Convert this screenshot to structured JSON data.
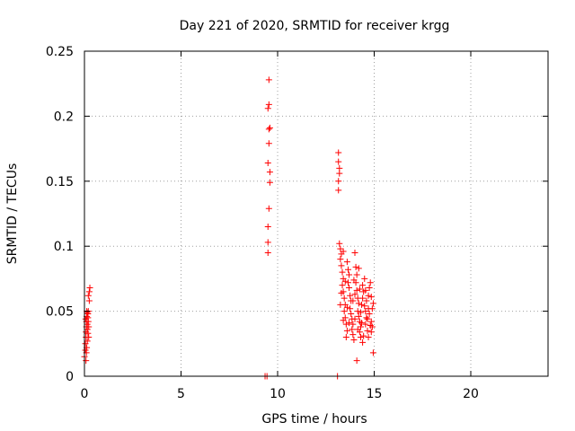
{
  "chart_data": {
    "type": "scatter",
    "title": "Day 221 of 2020, SRMTID for receiver krgg",
    "xlabel": "GPS time / hours",
    "ylabel": "SRMTID / TECUs",
    "xlim": [
      0,
      24
    ],
    "ylim": [
      0,
      0.25
    ],
    "xticks": [
      0,
      5,
      10,
      15,
      20
    ],
    "xtick_labels": [
      "0",
      "5",
      "10",
      "15",
      "20"
    ],
    "yticks": [
      0,
      0.05,
      0.1,
      0.15,
      0.2,
      0.25
    ],
    "ytick_labels": [
      "0",
      "0.05",
      "0.1",
      "0.15",
      "0.2",
      "0.25"
    ],
    "grid": true,
    "marker": "+",
    "color": "#ff0000",
    "series": [
      {
        "name": "SRMTID",
        "points": [
          [
            0.0,
            0.015
          ],
          [
            0.05,
            0.02
          ],
          [
            0.05,
            0.025
          ],
          [
            0.08,
            0.03
          ],
          [
            0.08,
            0.034
          ],
          [
            0.1,
            0.038
          ],
          [
            0.1,
            0.042
          ],
          [
            0.12,
            0.046
          ],
          [
            0.12,
            0.05
          ],
          [
            0.06,
            0.044
          ],
          [
            0.15,
            0.036
          ],
          [
            0.15,
            0.04
          ],
          [
            0.18,
            0.045
          ],
          [
            0.18,
            0.048
          ],
          [
            0.2,
            0.05
          ],
          [
            0.2,
            0.042
          ],
          [
            0.22,
            0.038
          ],
          [
            0.1,
            0.018
          ],
          [
            0.12,
            0.022
          ],
          [
            0.15,
            0.027
          ],
          [
            0.25,
            0.058
          ],
          [
            0.25,
            0.065
          ],
          [
            0.28,
            0.068
          ],
          [
            0.2,
            0.062
          ],
          [
            0.08,
            0.012
          ],
          [
            0.22,
            0.03
          ],
          [
            0.18,
            0.033
          ],
          [
            0.14,
            0.049
          ],
          [
            9.35,
            0.0
          ],
          [
            9.45,
            0.0
          ],
          [
            9.5,
            0.095
          ],
          [
            9.5,
            0.103
          ],
          [
            9.5,
            0.115
          ],
          [
            9.55,
            0.129
          ],
          [
            9.6,
            0.149
          ],
          [
            9.6,
            0.157
          ],
          [
            9.5,
            0.164
          ],
          [
            9.55,
            0.179
          ],
          [
            9.55,
            0.19
          ],
          [
            9.6,
            0.191
          ],
          [
            9.5,
            0.206
          ],
          [
            9.55,
            0.209
          ],
          [
            9.55,
            0.228
          ],
          [
            13.1,
            0.0
          ],
          [
            13.15,
            0.143
          ],
          [
            13.15,
            0.15
          ],
          [
            13.2,
            0.156
          ],
          [
            13.2,
            0.16
          ],
          [
            13.15,
            0.165
          ],
          [
            13.15,
            0.172
          ],
          [
            13.2,
            0.102
          ],
          [
            13.25,
            0.098
          ],
          [
            13.3,
            0.094
          ],
          [
            13.25,
            0.09
          ],
          [
            13.3,
            0.085
          ],
          [
            13.35,
            0.08
          ],
          [
            13.4,
            0.075
          ],
          [
            13.35,
            0.07
          ],
          [
            13.4,
            0.065
          ],
          [
            13.45,
            0.06
          ],
          [
            13.5,
            0.055
          ],
          [
            13.45,
            0.05
          ],
          [
            13.5,
            0.045
          ],
          [
            13.55,
            0.04
          ],
          [
            13.6,
            0.035
          ],
          [
            13.55,
            0.03
          ],
          [
            13.6,
            0.088
          ],
          [
            13.65,
            0.082
          ],
          [
            13.7,
            0.078
          ],
          [
            13.65,
            0.072
          ],
          [
            13.7,
            0.068
          ],
          [
            13.75,
            0.062
          ],
          [
            13.8,
            0.058
          ],
          [
            13.75,
            0.052
          ],
          [
            13.8,
            0.048
          ],
          [
            13.85,
            0.044
          ],
          [
            13.9,
            0.04
          ],
          [
            13.85,
            0.036
          ],
          [
            13.9,
            0.032
          ],
          [
            13.95,
            0.028
          ],
          [
            14.0,
            0.095
          ],
          [
            14.05,
            0.084
          ],
          [
            14.1,
            0.078
          ],
          [
            14.05,
            0.072
          ],
          [
            14.1,
            0.066
          ],
          [
            14.15,
            0.06
          ],
          [
            14.2,
            0.056
          ],
          [
            14.15,
            0.05
          ],
          [
            14.2,
            0.046
          ],
          [
            14.25,
            0.042
          ],
          [
            14.3,
            0.038
          ],
          [
            14.25,
            0.034
          ],
          [
            14.3,
            0.03
          ],
          [
            14.35,
            0.055
          ],
          [
            14.4,
            0.06
          ],
          [
            14.45,
            0.065
          ],
          [
            14.4,
            0.07
          ],
          [
            14.5,
            0.075
          ],
          [
            14.55,
            0.05
          ],
          [
            14.6,
            0.045
          ],
          [
            14.55,
            0.04
          ],
          [
            14.65,
            0.035
          ],
          [
            14.7,
            0.03
          ],
          [
            14.6,
            0.058
          ],
          [
            14.7,
            0.062
          ],
          [
            14.75,
            0.068
          ],
          [
            14.8,
            0.072
          ],
          [
            14.75,
            0.048
          ],
          [
            14.85,
            0.042
          ],
          [
            14.9,
            0.038
          ],
          [
            14.85,
            0.034
          ],
          [
            14.9,
            0.052
          ],
          [
            14.95,
            0.056
          ],
          [
            14.95,
            0.018
          ],
          [
            14.1,
            0.012
          ],
          [
            14.4,
            0.026
          ],
          [
            14.2,
            0.083
          ],
          [
            13.4,
            0.096
          ],
          [
            13.3,
            0.064
          ],
          [
            13.6,
            0.053
          ],
          [
            14.0,
            0.044
          ],
          [
            14.3,
            0.049
          ],
          [
            14.5,
            0.054
          ],
          [
            14.65,
            0.044
          ],
          [
            14.8,
            0.039
          ],
          [
            13.5,
            0.073
          ],
          [
            13.7,
            0.041
          ],
          [
            14.0,
            0.063
          ],
          [
            14.35,
            0.041
          ],
          [
            14.55,
            0.066
          ],
          [
            13.9,
            0.058
          ],
          [
            14.15,
            0.036
          ],
          [
            14.45,
            0.031
          ],
          [
            14.7,
            0.052
          ],
          [
            14.85,
            0.061
          ],
          [
            13.95,
            0.074
          ],
          [
            14.25,
            0.067
          ],
          [
            13.25,
            0.055
          ],
          [
            13.4,
            0.043
          ]
        ]
      }
    ]
  }
}
